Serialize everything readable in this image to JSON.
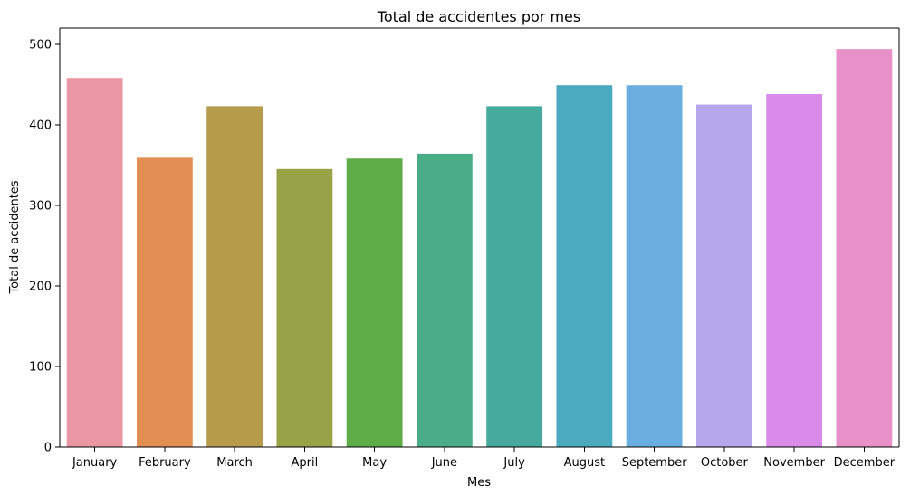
{
  "chart_data": {
    "type": "bar",
    "title": "Total de accidentes por mes",
    "xlabel": "Mes",
    "ylabel": "Total de accidentes",
    "categories": [
      "January",
      "February",
      "March",
      "April",
      "May",
      "June",
      "July",
      "August",
      "September",
      "October",
      "November",
      "December"
    ],
    "values": [
      458,
      359,
      423,
      345,
      358,
      364,
      423,
      449,
      449,
      425,
      438,
      494
    ],
    "ylim": [
      0,
      520
    ],
    "yticks": [
      0,
      100,
      200,
      300,
      400,
      500
    ],
    "colors": [
      "#ea96a3",
      "#e18f53",
      "#b69c4a",
      "#98a348",
      "#5eac47",
      "#49ae87",
      "#46aa9f",
      "#4aaac0",
      "#6aaee0",
      "#b5a7ec",
      "#da8bea",
      "#e891c8"
    ],
    "grid": false,
    "legend": "none"
  }
}
